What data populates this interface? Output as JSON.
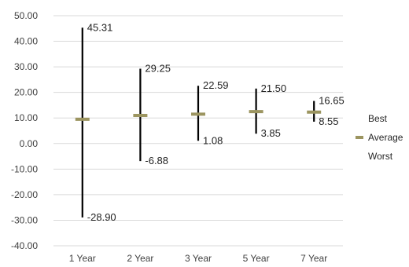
{
  "chart_data": {
    "type": "stock",
    "categories": [
      "1 Year",
      "2 Year",
      "3 Year",
      "5 Year",
      "7 Year"
    ],
    "series": [
      {
        "name": "Best",
        "values": [
          45.31,
          29.25,
          22.59,
          21.5,
          16.65
        ]
      },
      {
        "name": "Average",
        "values": [
          9.5,
          11.0,
          11.5,
          12.5,
          12.3
        ]
      },
      {
        "name": "Worst",
        "values": [
          -28.9,
          -6.88,
          1.08,
          3.85,
          8.55
        ]
      }
    ],
    "best_labels": [
      "45.31",
      "29.25",
      "22.59",
      "21.50",
      "16.65"
    ],
    "worst_labels": [
      "-28.90",
      "-6.88",
      "1.08",
      "3.85",
      "8.55"
    ],
    "ylim": [
      -40,
      50
    ],
    "yticks": [
      "50.00",
      "40.00",
      "30.00",
      "20.00",
      "10.00",
      "0.00",
      "-10.00",
      "-20.00",
      "-30.00",
      "-40.00"
    ],
    "grid": true,
    "legend_position": "right",
    "legend": [
      {
        "label": "Best",
        "marker": "none"
      },
      {
        "label": "Average",
        "marker": "dash"
      },
      {
        "label": "Worst",
        "marker": "none"
      }
    ],
    "colors": {
      "range": "#000000",
      "average": "#9c9560",
      "grid": "#d9d9d9"
    }
  }
}
